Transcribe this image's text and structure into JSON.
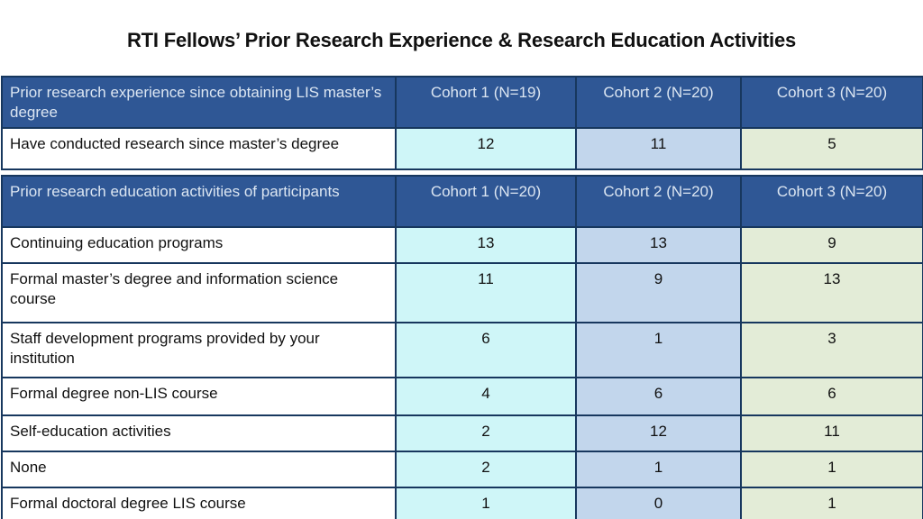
{
  "slide_title": "RTI Fellows’ Prior Research Experience & Research Education Activities",
  "colors": {
    "header_bg": "#2F5795",
    "header_text": "#DCE6F2",
    "border": "#17375E",
    "cohort1_bg": "#CFF6F8",
    "cohort2_bg": "#C2D6EC",
    "cohort3_bg": "#E3ECD7"
  },
  "chart_data": [
    {
      "type": "table",
      "title": "Prior research experience since obtaining LIS master’s degree",
      "header": [
        "Prior research experience since obtaining LIS master’s degree",
        "Cohort 1 (N=19)",
        "Cohort 2 (N=20)",
        "Cohort 3 (N=20)"
      ],
      "rows": [
        {
          "label": "Have conducted research since master’s degree",
          "values": [
            12,
            11,
            5
          ]
        }
      ]
    },
    {
      "type": "table",
      "title": "Prior research education activities of participants",
      "header": [
        "Prior research education activities of participants",
        "Cohort 1 (N=20)",
        "Cohort 2 (N=20)",
        "Cohort 3  (N=20)"
      ],
      "rows": [
        {
          "label": "Continuing education programs",
          "values": [
            13,
            13,
            9
          ]
        },
        {
          "label": "Formal master’s degree and information science course",
          "values": [
            11,
            9,
            13
          ]
        },
        {
          "label": "Staff development programs provided by your institution",
          "values": [
            6,
            1,
            3
          ]
        },
        {
          "label": "Formal degree non-LIS course",
          "values": [
            4,
            6,
            6
          ]
        },
        {
          "label": "Self-education activities",
          "values": [
            2,
            12,
            11
          ]
        },
        {
          "label": "None",
          "values": [
            2,
            1,
            1
          ]
        },
        {
          "label": "Formal doctoral degree LIS course",
          "values": [
            1,
            0,
            1
          ]
        }
      ]
    }
  ]
}
